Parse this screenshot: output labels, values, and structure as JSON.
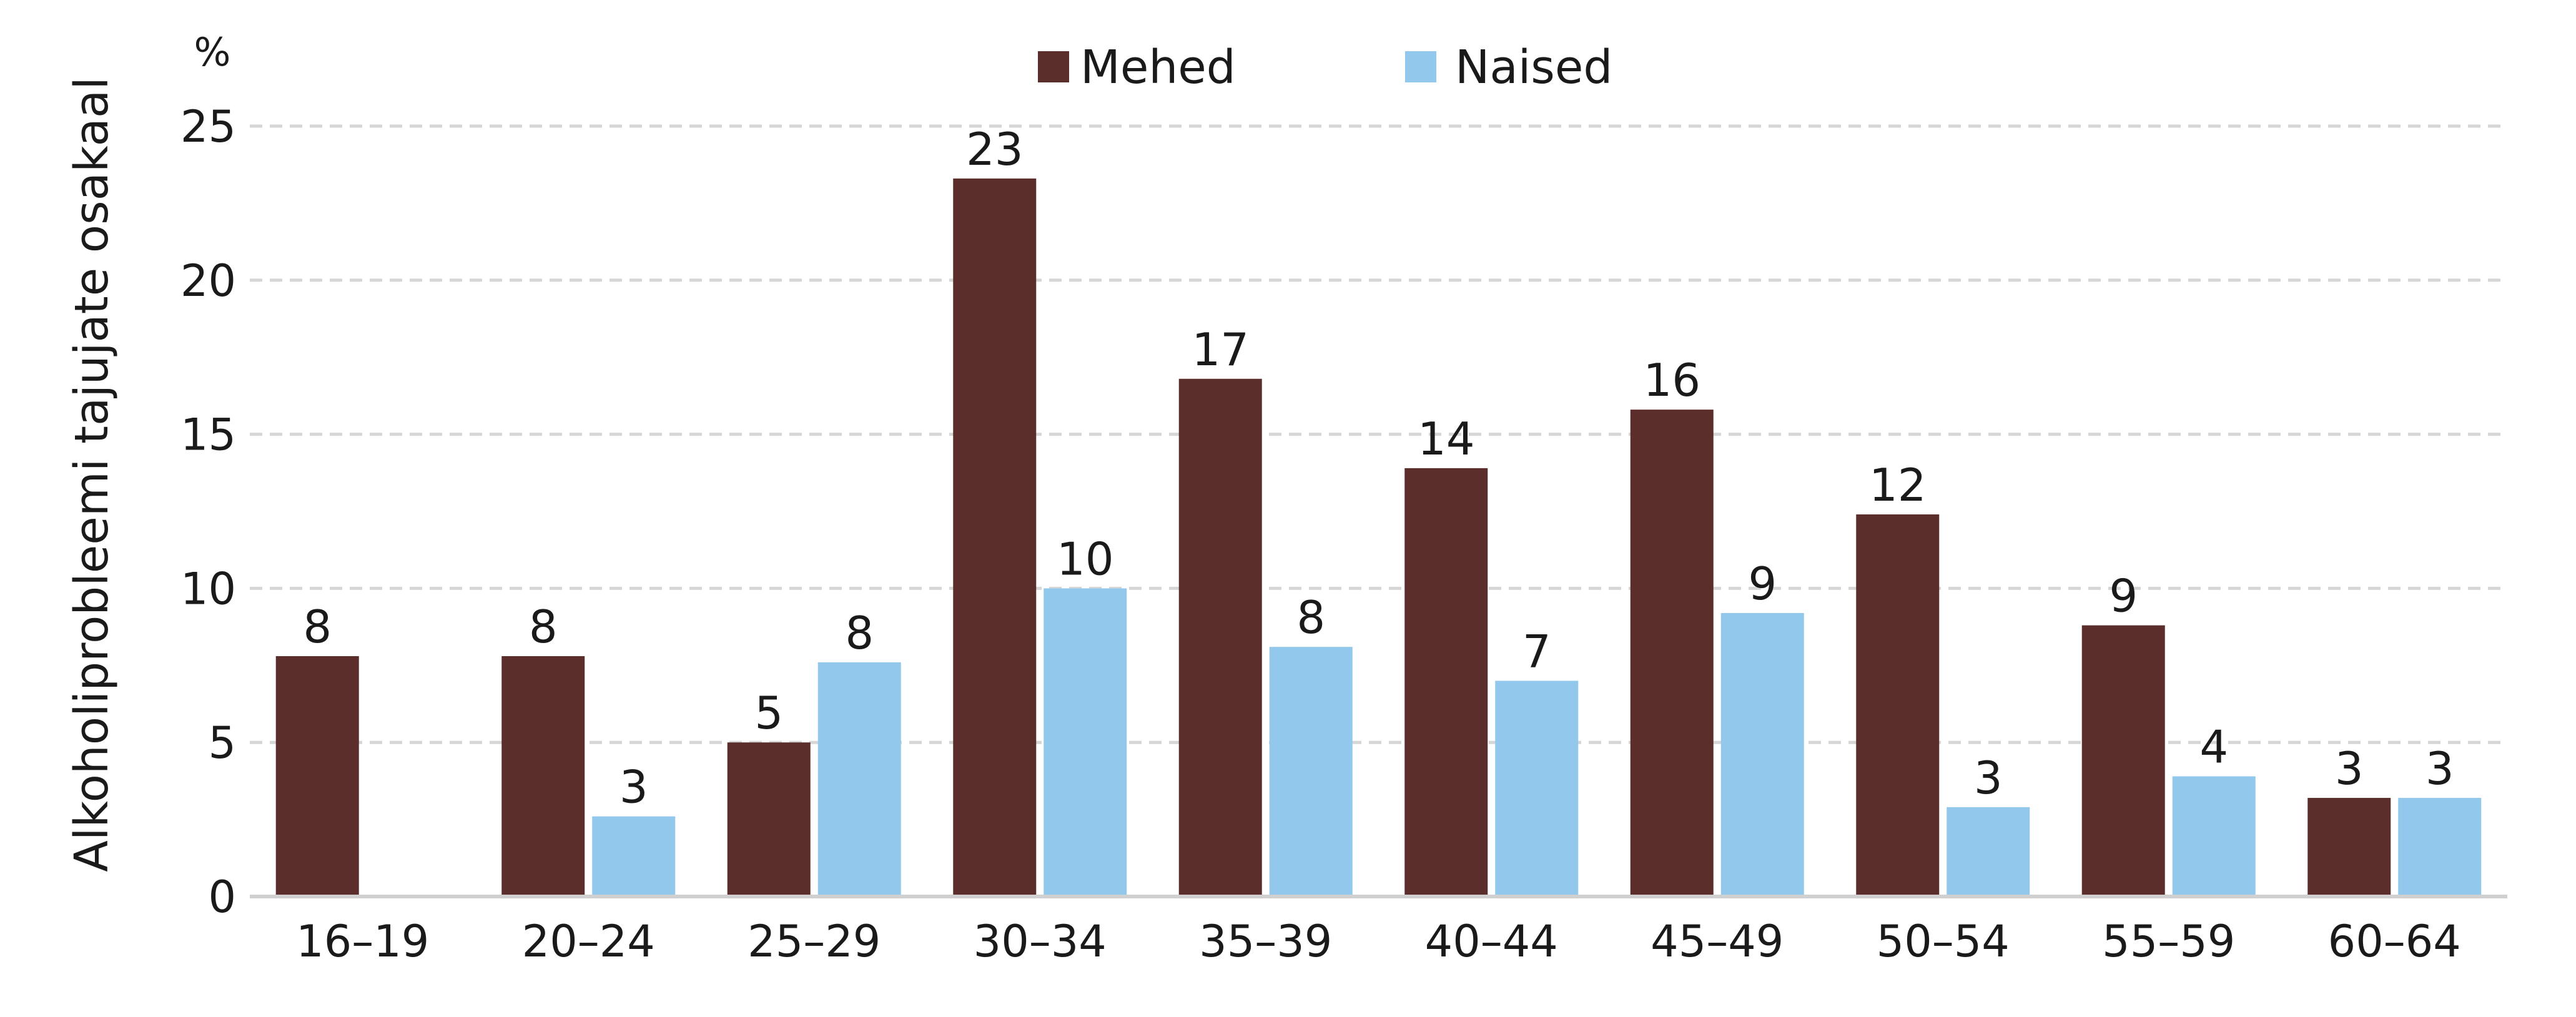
{
  "chart_data": {
    "type": "bar",
    "title": "",
    "unit_label": "%",
    "ylabel": "Alkoholiprobleemi tajujate osakaal",
    "xlabel": "",
    "ylim": [
      0,
      25
    ],
    "yticks": [
      0,
      5,
      10,
      15,
      20,
      25
    ],
    "grid": true,
    "legend_position": "top-center",
    "categories": [
      "16–19",
      "20–24",
      "25–29",
      "30–34",
      "35–39",
      "40–44",
      "45–49",
      "50–54",
      "55–59",
      "60–64"
    ],
    "series": [
      {
        "name": "Mehed",
        "color": "#5c2e2b",
        "values": [
          7.8,
          7.8,
          5.0,
          23.3,
          16.8,
          13.9,
          15.8,
          12.4,
          8.8,
          3.2
        ],
        "labels": [
          "8",
          "8",
          "5",
          "23",
          "17",
          "14",
          "16",
          "12",
          "9",
          "3"
        ]
      },
      {
        "name": "Naised",
        "color": "#92c8ec",
        "values": [
          null,
          2.6,
          7.6,
          10.0,
          8.1,
          7.0,
          9.2,
          2.9,
          3.9,
          3.2
        ],
        "labels": [
          "",
          "3",
          "8",
          "10",
          "8",
          "7",
          "9",
          "3",
          "4",
          "3"
        ]
      }
    ]
  }
}
